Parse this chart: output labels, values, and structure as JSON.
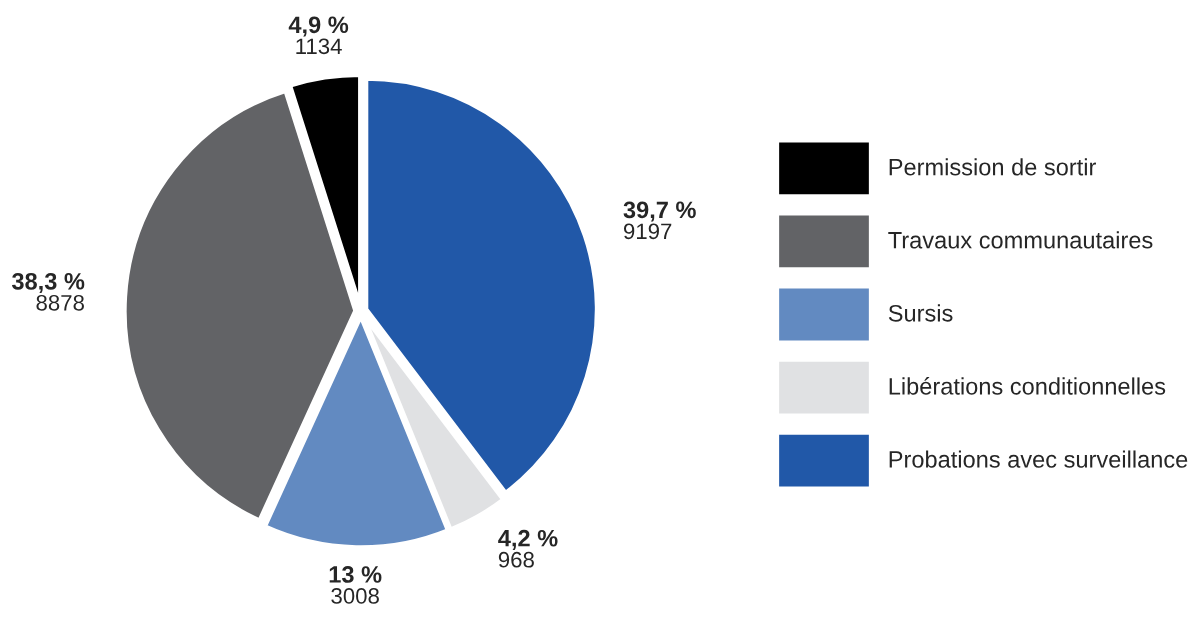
{
  "chart_data": {
    "type": "pie",
    "categories": [
      "Permission de sortir",
      "Travaux communautaires",
      "Sursis",
      "Libérations conditionnelles",
      "Probations avec surveillance"
    ],
    "values": [
      1134,
      8878,
      3008,
      968,
      9197
    ],
    "annotations": [
      "4,9 %",
      "38,3 %",
      "13 %",
      "4,2 %",
      "39,7 %"
    ],
    "data_labels": true,
    "colors": [
      "#000000",
      "#626366",
      "#628ac1",
      "#e0e1e3",
      "#2158a8"
    ],
    "legend": "right"
  }
}
